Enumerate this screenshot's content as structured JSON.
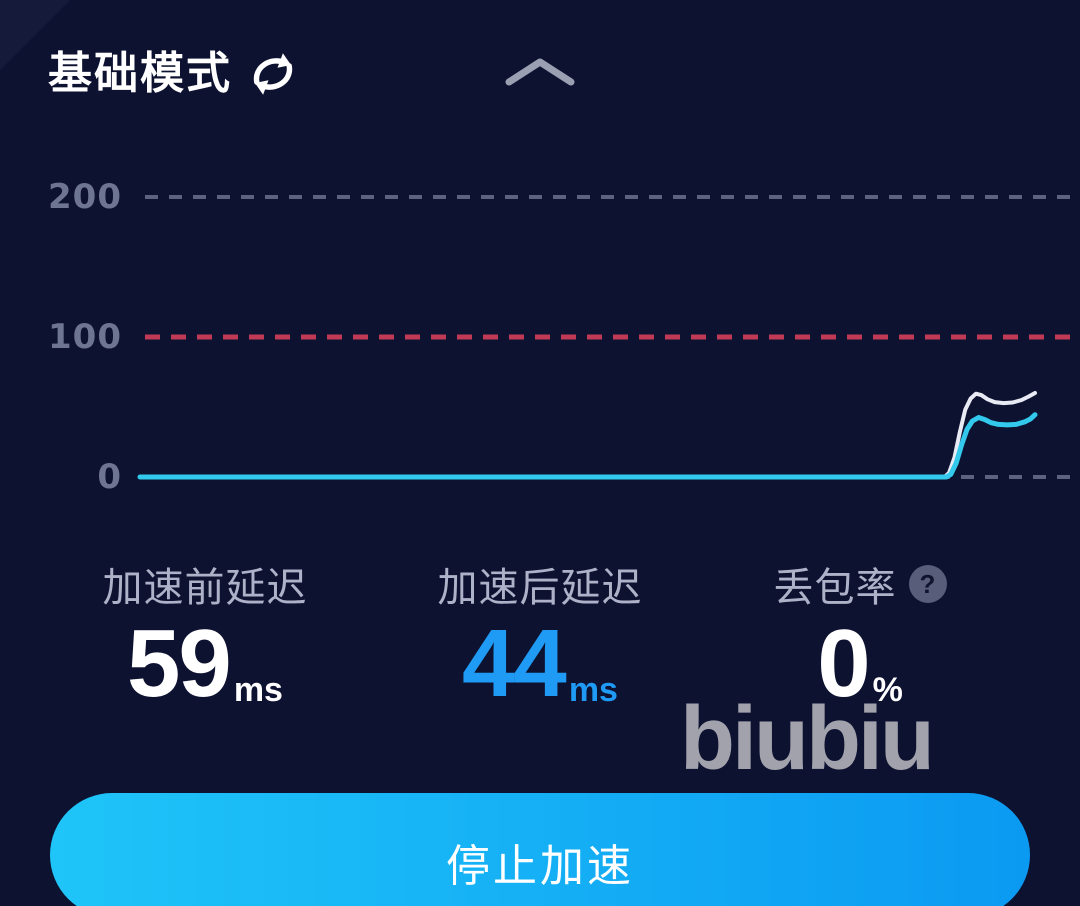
{
  "header": {
    "mode_label": "基础模式",
    "switch_icon": "refresh-cycle-icon",
    "collapse_icon": "chevron-up-icon"
  },
  "chart_data": {
    "type": "line",
    "title": "",
    "y_axis": {
      "ticks": [
        "200",
        "100",
        "0"
      ],
      "ylim": [
        0,
        235
      ]
    },
    "x_axis": {
      "min": 0,
      "max": 100,
      "ticks": []
    },
    "grid": "dashed-horizontal",
    "legend": "none",
    "gridlines": [
      {
        "value": 200,
        "color": "#5c6280",
        "dash": "13 11",
        "width": 4
      },
      {
        "value": 100,
        "color": "#c03a55",
        "dash": "15 11",
        "width": 5
      },
      {
        "value": 0,
        "color": "#5c6280",
        "dash": "13 11",
        "width": 4
      }
    ],
    "series": [
      {
        "name": "加速前延迟",
        "color": "#e8eaf4",
        "width": 4,
        "points": [
          [
            0,
            0
          ],
          [
            45,
            0
          ],
          [
            89.9,
            0
          ],
          [
            90.4,
            3
          ],
          [
            91.0,
            14
          ],
          [
            91.6,
            32
          ],
          [
            92.2,
            48
          ],
          [
            92.8,
            56
          ],
          [
            93.4,
            59.5
          ],
          [
            94.0,
            58.5
          ],
          [
            94.7,
            55.5
          ],
          [
            95.5,
            53.5
          ],
          [
            96.5,
            52.8
          ],
          [
            97.5,
            53.2
          ],
          [
            98.5,
            55
          ],
          [
            99.3,
            57.5
          ],
          [
            100,
            60
          ]
        ]
      },
      {
        "name": "加速后延迟",
        "color": "#32c9ec",
        "width": 5,
        "points": [
          [
            0,
            0
          ],
          [
            45,
            0
          ],
          [
            90.1,
            0
          ],
          [
            90.6,
            2
          ],
          [
            91.2,
            10
          ],
          [
            91.8,
            23
          ],
          [
            92.4,
            34
          ],
          [
            93.0,
            40
          ],
          [
            93.7,
            42.5
          ],
          [
            94.4,
            41
          ],
          [
            95.1,
            38.8
          ],
          [
            95.9,
            37.6
          ],
          [
            96.9,
            37.2
          ],
          [
            97.9,
            37.6
          ],
          [
            98.9,
            39.5
          ],
          [
            99.5,
            41.5
          ],
          [
            100,
            44.5
          ]
        ]
      }
    ]
  },
  "stats": [
    {
      "id": "latency-before",
      "label": "加速前延迟",
      "value": "59",
      "unit": "ms",
      "value_color": "#ffffff"
    },
    {
      "id": "latency-after",
      "label": "加速后延迟",
      "value": "44",
      "unit": "ms",
      "value_color": "#1f9bf5"
    },
    {
      "id": "packet-loss",
      "label": "丢包率",
      "value": "0",
      "unit": "%",
      "value_color": "#ffffff",
      "help_glyph": "?"
    }
  ],
  "watermark": {
    "text": "biubiu"
  },
  "action_button": {
    "label": "停止加速",
    "gradient": [
      "#1fc5f8",
      "#0b9af2"
    ]
  },
  "colors": {
    "background": "#0e1231",
    "tick_label": "#6e7592",
    "grid_gray": "#5c6280",
    "grid_red": "#c03a55",
    "line_before": "#e8eaf4",
    "line_after": "#32c9ec",
    "accent_blue": "#1f9bf5"
  }
}
